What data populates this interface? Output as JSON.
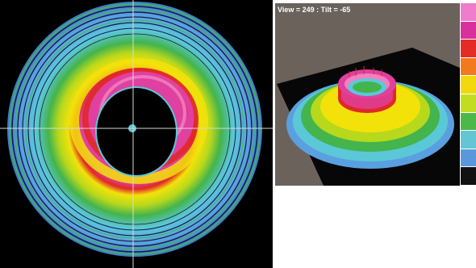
{
  "view_panel": {
    "label": "View = 249 : Tilt = -65"
  },
  "colors": {
    "background_black": "#000000",
    "gray_bg": "#6b625c",
    "magenta": "#e040a0",
    "pink": "#f080c0",
    "red": "#e02828",
    "orange": "#f08020",
    "yellow": "#f2e20a",
    "yellow_green": "#b8d81c",
    "green": "#44b44c",
    "cyan": "#5bc8d8",
    "light_blue": "#5aa0e0",
    "dark_blue": "#16185a"
  },
  "colorbar": [
    {
      "name": "pink",
      "color": "#f07ccc"
    },
    {
      "name": "magenta",
      "color": "#d8309c"
    },
    {
      "name": "red",
      "color": "#e62a26"
    },
    {
      "name": "orange",
      "color": "#f17a1e"
    },
    {
      "name": "yellow",
      "color": "#f2d80c"
    },
    {
      "name": "yellow-green",
      "color": "#c2dc22"
    },
    {
      "name": "green",
      "color": "#4cb848"
    },
    {
      "name": "cyan",
      "color": "#62c6d4"
    },
    {
      "name": "blue",
      "color": "#5a98dc"
    },
    {
      "name": "dark",
      "color": "#111111"
    }
  ]
}
